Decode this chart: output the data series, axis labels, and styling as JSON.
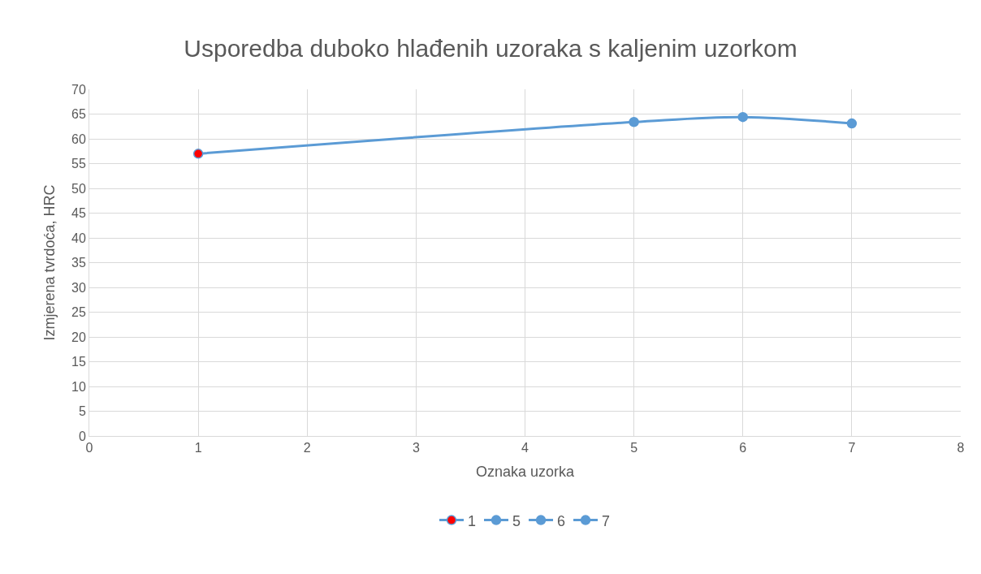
{
  "chart_data": {
    "type": "line",
    "title": "Usporedba duboko hlađenih uzoraka s kaljenim uzorkom",
    "xlabel": "Oznaka uzorka",
    "ylabel": "Izmjerena tvrdoća, HRC",
    "series": [
      {
        "color": "#5b9bd5",
        "x": [
          1,
          5,
          6,
          7
        ],
        "values": [
          57,
          63.4,
          64.4,
          63.1
        ],
        "marker": "none"
      },
      {
        "type": "scatter",
        "name": "1",
        "color": "#ff0000",
        "x": [
          1
        ],
        "values": [
          57
        ]
      },
      {
        "type": "scatter",
        "name": "5",
        "color": "#5b9bd5",
        "x": [
          5
        ],
        "values": [
          63.4
        ]
      },
      {
        "type": "scatter",
        "name": "6",
        "color": "#5b9bd5",
        "x": [
          6
        ],
        "values": [
          64.4
        ]
      },
      {
        "type": "scatter",
        "name": "7",
        "color": "#5b9bd5",
        "x": [
          7
        ],
        "values": [
          63.1
        ]
      }
    ],
    "xlim": [
      0,
      8
    ],
    "xticks": [
      0,
      1,
      2,
      3,
      4,
      5,
      6,
      7,
      8
    ],
    "ylim": [
      0,
      70
    ],
    "yticks": [
      0,
      5,
      10,
      15,
      20,
      25,
      30,
      35,
      40,
      45,
      50,
      55,
      60,
      65,
      70
    ],
    "grid": true,
    "legend": "bottom",
    "marker": "circle",
    "line_style": "solid"
  }
}
